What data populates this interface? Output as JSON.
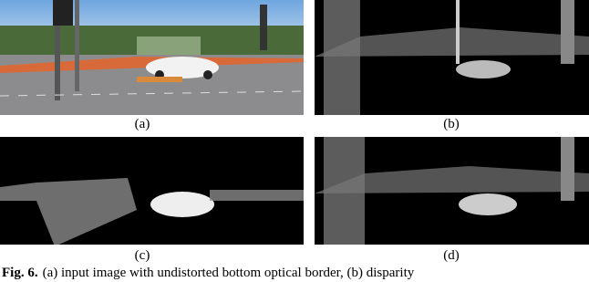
{
  "figure": {
    "panels": [
      {
        "label": "(a)"
      },
      {
        "label": "(b)"
      },
      {
        "label": "(c)"
      },
      {
        "label": "(d)"
      }
    ],
    "caption": {
      "prefix": "Fig. 6.",
      "text": "(a) input image with undistorted bottom optical border, (b) disparity"
    }
  }
}
